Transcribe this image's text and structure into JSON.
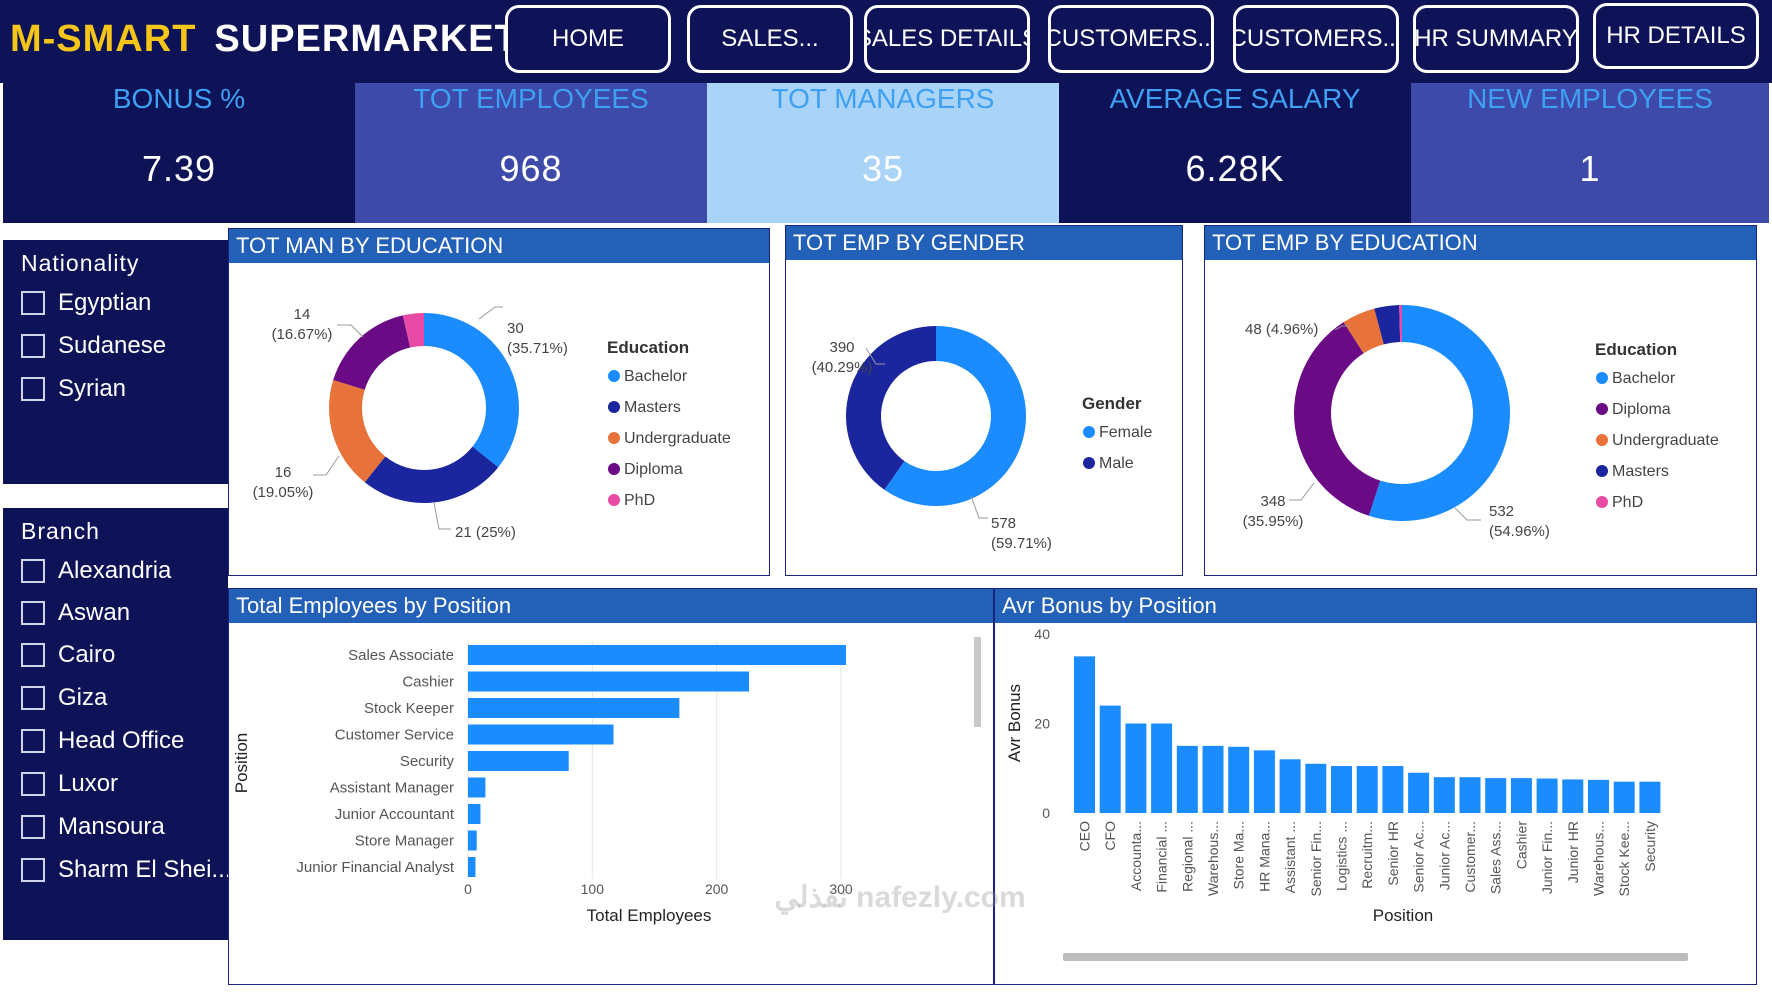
{
  "header": {
    "brand_part1": "M-SMART",
    "brand_part2": "SUPERMARKET",
    "nav": [
      "HOME",
      "SALES...",
      "SALES DETAILS",
      "CUSTOMERS...",
      "CUSTOMERS...",
      "HR SUMMARY",
      "HR DETAILS"
    ]
  },
  "kpis": [
    {
      "label": "BONUS %",
      "value": "7.39"
    },
    {
      "label": "TOT EMPLOYEES",
      "value": "968"
    },
    {
      "label": "TOT MANAGERS",
      "value": "35"
    },
    {
      "label": "AVERAGE SALARY",
      "value": "6.28K"
    },
    {
      "label": "NEW EMPLOYEES",
      "value": "1"
    }
  ],
  "filters": {
    "nationality": {
      "title": "Nationality",
      "items": [
        "Egyptian",
        "Sudanese",
        "Syrian"
      ]
    },
    "branch": {
      "title": "Branch",
      "items": [
        "Alexandria",
        "Aswan",
        "Cairo",
        "Giza",
        "Head Office",
        "Luxor",
        "Mansoura",
        "Sharm El Shei..."
      ]
    }
  },
  "colors": {
    "header_bg": "#0e1257",
    "kpi_bg": [
      "#0e1257",
      "#3d4aaa",
      "#a9d4f8",
      "#0e1257",
      "#3d4aaa"
    ],
    "kpi_label": [
      "#3ea0f2",
      "#3ea0f2",
      "#3ea0f2",
      "#3ea0f2",
      "#3ea0f2"
    ],
    "panel_title_bg": "#2360b8",
    "bar": "#1a8cff"
  },
  "watermark": "نفذلي nafezly.com",
  "chart_data": [
    {
      "type": "donut",
      "title": "TOT MAN BY EDUCATION",
      "legend_title": "Education",
      "legend": [
        {
          "name": "Bachelor",
          "color": "#1a8cff"
        },
        {
          "name": "Masters",
          "color": "#1b259d"
        },
        {
          "name": "Undergraduate",
          "color": "#e8733a"
        },
        {
          "name": "Diploma",
          "color": "#6b0a85"
        },
        {
          "name": "PhD",
          "color": "#e84ba5"
        }
      ],
      "slices": [
        {
          "name": "Bachelor",
          "value": 30,
          "pct": "35.71%",
          "color": "#1a8cff"
        },
        {
          "name": "Masters",
          "value": 21,
          "pct": "25%",
          "color": "#1b259d"
        },
        {
          "name": "Undergraduate",
          "value": 16,
          "pct": "19.05%",
          "color": "#e8733a"
        },
        {
          "name": "Diploma",
          "value": 14,
          "pct": "16.67%",
          "color": "#6b0a85"
        },
        {
          "name": "PhD",
          "value": 3,
          "pct": "",
          "color": "#e84ba5"
        }
      ],
      "labels": {
        "bachelor": [
          "30",
          "(35.71%)"
        ],
        "masters": [
          "21 (25%)"
        ],
        "undergraduate": [
          "16",
          "(19.05%)"
        ],
        "diploma": [
          "14",
          "(16.67%)"
        ]
      }
    },
    {
      "type": "donut",
      "title": "TOT EMP BY GENDER",
      "legend_title": "Gender",
      "legend": [
        {
          "name": "Female",
          "color": "#1a8cff"
        },
        {
          "name": "Male",
          "color": "#1b259d"
        }
      ],
      "slices": [
        {
          "name": "Female",
          "value": 578,
          "pct": "59.71%",
          "color": "#1a8cff"
        },
        {
          "name": "Male",
          "value": 390,
          "pct": "40.29%",
          "color": "#1b259d"
        }
      ],
      "labels": {
        "female": [
          "578",
          "(59.71%)"
        ],
        "male": [
          "390",
          "(40.29%)"
        ]
      }
    },
    {
      "type": "donut",
      "title": "TOT EMP BY EDUCATION",
      "legend_title": "Education",
      "legend": [
        {
          "name": "Bachelor",
          "color": "#1a8cff"
        },
        {
          "name": "Diploma",
          "color": "#6b0a85"
        },
        {
          "name": "Undergraduate",
          "color": "#e8733a"
        },
        {
          "name": "Masters",
          "color": "#1b259d"
        },
        {
          "name": "PhD",
          "color": "#e84ba5"
        }
      ],
      "slices": [
        {
          "name": "Bachelor",
          "value": 532,
          "pct": "54.96%",
          "color": "#1a8cff"
        },
        {
          "name": "Diploma",
          "value": 348,
          "pct": "35.95%",
          "color": "#6b0a85"
        },
        {
          "name": "Undergraduate",
          "value": 48,
          "pct": "4.96%",
          "color": "#e8733a"
        },
        {
          "name": "Masters",
          "value": 36,
          "pct": "",
          "color": "#1b259d"
        },
        {
          "name": "PhD",
          "value": 4,
          "pct": "",
          "color": "#e84ba5"
        }
      ],
      "labels": {
        "bachelor": [
          "532",
          "(54.96%)"
        ],
        "diploma": [
          "348",
          "(35.95%)"
        ],
        "undergraduate": [
          "48 (4.96%)"
        ]
      }
    },
    {
      "type": "bar",
      "orientation": "horizontal",
      "title": "Total Employees by Position",
      "xlabel": "Total Employees",
      "ylabel": "Position",
      "categories": [
        "Sales Associate",
        "Cashier",
        "Stock Keeper",
        "Customer Service",
        "Security",
        "Assistant Manager",
        "Junior Accountant",
        "Store Manager",
        "Junior Financial Analyst"
      ],
      "values": [
        304,
        226,
        170,
        117,
        81,
        14,
        10,
        7,
        6
      ],
      "xticks": [
        "0",
        "100",
        "200",
        "300"
      ],
      "xlim": [
        0,
        300
      ],
      "grid": true
    },
    {
      "type": "bar",
      "orientation": "vertical",
      "title": "Avr Bonus by Position",
      "xlabel": "Position",
      "ylabel": "Avr Bonus",
      "categories": [
        "CEO",
        "CFO",
        "Accounta...",
        "Financial ...",
        "Regional ...",
        "Warehous...",
        "Store Ma...",
        "HR Mana...",
        "Assistant ...",
        "Senior Fin...",
        "Logistics ...",
        "Recruitm...",
        "Senior HR",
        "Senior Ac...",
        "Junior Ac...",
        "Customer...",
        "Sales Ass...",
        "Cashier",
        "Junior Fin...",
        "Junior HR",
        "Warehous...",
        "Stock Kee...",
        "Security"
      ],
      "values": [
        35,
        24,
        20,
        20,
        15,
        15,
        14.8,
        14,
        12,
        11,
        10.5,
        10.5,
        10.5,
        9,
        8,
        8,
        7.8,
        7.8,
        7.7,
        7.5,
        7.4,
        7,
        7
      ],
      "yticks": [
        "0",
        "20",
        "40"
      ],
      "ylim": [
        0,
        40
      ],
      "grid": false
    }
  ]
}
